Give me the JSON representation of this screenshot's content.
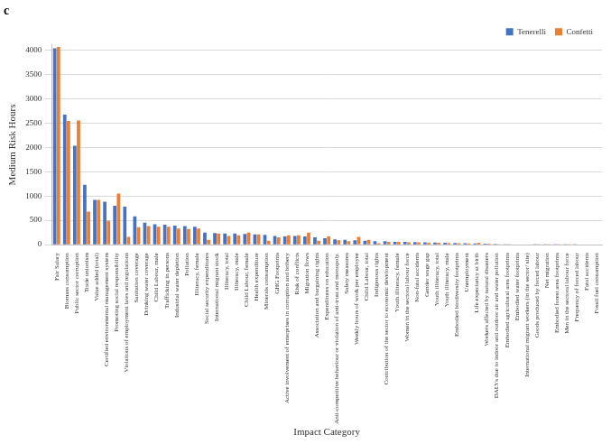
{
  "chart_data": {
    "type": "bar",
    "title": "c",
    "x_label": "Impact Category",
    "y_label": "Medium Risk Hours",
    "categories": [
      "Fair Salary",
      "Biomass consumption",
      "Public sector corruption",
      "Trade unionism",
      "Value added (total)",
      "Certified environmental management system",
      "Promoting social responsibility",
      "Violations of employment laws and regulations",
      "Sanitation coverage",
      "Drinking water coverage",
      "Child Labour, male",
      "Trafficking in persons",
      "Industrial water depletion",
      "Pollution",
      "Illiteracy, female",
      "Social security expenditures",
      "International migrant stock",
      "Illiteracy, total",
      "Illiteracy, male",
      "Child Labour, female",
      "Health expenditure",
      "Minerals consumption",
      "GHG Footprints",
      "Active involvement of enterprises in corruption and bribery",
      "Risk of conflicts",
      "Migration flows",
      "Association and bargaining rights",
      "Expenditures on education",
      "Anti-competitive behaviour or violation of anti-trust and monopoly.",
      "Safety measures",
      "Weekly hours of work per employee",
      "Child Labour, total",
      "Indigenous rights",
      "Contribution of the sector to economic development",
      "Youth illiteracy, female",
      "Women in the sectoral labour force",
      "Non-fatal accidents",
      "Gender wage gap",
      "Youth illiteracy, total",
      "Youth illiteracy, male",
      "Embodied biodiversity footprints",
      "Unemployment",
      "Life expectancy at birth",
      "Workers affected by natural disasters",
      "DALYs due to indoor and outdoor air and water pollution",
      "Embodied agricultural area footprints",
      "Embodied water footprints",
      "International migrant workers (in the sector/ site)",
      "Goods produced by forced labour",
      "Net migration",
      "Embodied forest area footprints",
      "Men in the sectoral labour force",
      "Frequency of forced labour",
      "Fatal accidents",
      "Fossil fuel consumption"
    ],
    "series": [
      {
        "name": "Tenerelli",
        "color": "#4472c4",
        "values": [
          4030,
          2670,
          2030,
          1230,
          920,
          880,
          800,
          780,
          580,
          450,
          420,
          410,
          390,
          380,
          370,
          250,
          240,
          230,
          230,
          220,
          210,
          200,
          180,
          170,
          180,
          170,
          150,
          130,
          110,
          100,
          90,
          80,
          70,
          70,
          60,
          60,
          55,
          50,
          45,
          40,
          35,
          30,
          25,
          20,
          15,
          10,
          8,
          5,
          3,
          2,
          2,
          1,
          1,
          0,
          0
        ]
      },
      {
        "name": "Confetti",
        "color": "#ed7d31",
        "values": [
          4060,
          2540,
          2550,
          680,
          920,
          490,
          1050,
          160,
          360,
          380,
          370,
          370,
          330,
          320,
          330,
          100,
          230,
          180,
          190,
          250,
          210,
          80,
          150,
          190,
          190,
          250,
          80,
          170,
          90,
          70,
          160,
          100,
          30,
          60,
          60,
          50,
          50,
          40,
          40,
          35,
          30,
          25,
          40,
          20,
          10,
          10,
          5,
          5,
          3,
          2,
          1,
          1,
          0,
          0,
          0
        ]
      }
    ],
    "ylim": [
      0,
      4100
    ],
    "yticks": [
      0,
      500,
      1000,
      1500,
      2000,
      2500,
      3000,
      3500,
      4000
    ],
    "grid": true,
    "legend": "top-right"
  }
}
